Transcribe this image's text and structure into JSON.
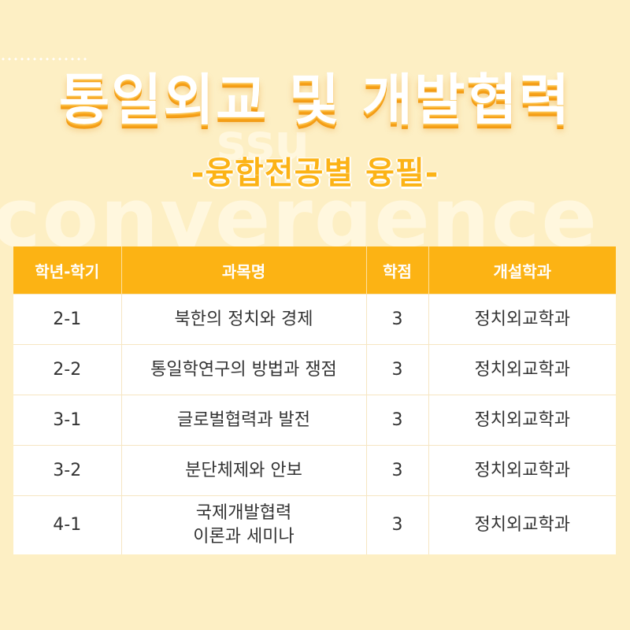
{
  "background": {
    "color": "#fdefc4",
    "watermark_top": "ssu",
    "watermark_bottom": "convergence"
  },
  "header": {
    "title": "통일외교 및 개발협력",
    "subtitle": "-융합전공별 융필-"
  },
  "table": {
    "header_color": "#fcb314",
    "columns": [
      "학년-학기",
      "과목명",
      "학점",
      "개설학과"
    ],
    "rows": [
      {
        "term": "2-1",
        "course": "북한의 정치와 경제",
        "course2": "",
        "credits": "3",
        "dept": "정치외교학과"
      },
      {
        "term": "2-2",
        "course": "통일학연구의 방법과 쟁점",
        "course2": "",
        "credits": "3",
        "dept": "정치외교학과"
      },
      {
        "term": "3-1",
        "course": "글로벌협력과 발전",
        "course2": "",
        "credits": "3",
        "dept": "정치외교학과"
      },
      {
        "term": "3-2",
        "course": "분단체제와 안보",
        "course2": "",
        "credits": "3",
        "dept": "정치외교학과"
      },
      {
        "term": "4-1",
        "course": "국제개발협력",
        "course2": "이론과 세미나",
        "credits": "3",
        "dept": "정치외교학과"
      }
    ]
  }
}
